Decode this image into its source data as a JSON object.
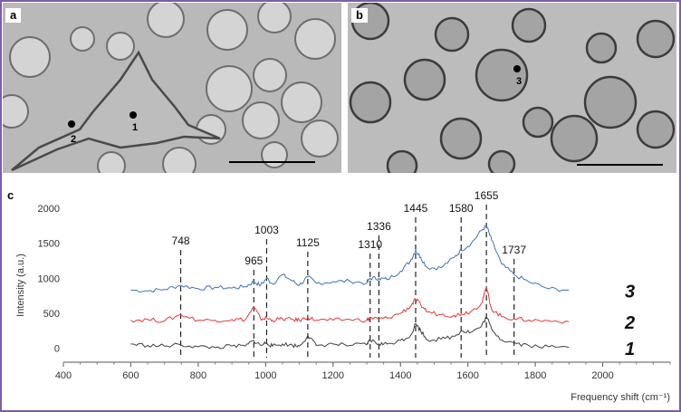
{
  "panels": {
    "a": {
      "letter": "a",
      "markers": [
        "1",
        "2"
      ]
    },
    "b": {
      "letter": "b",
      "markers": [
        "3"
      ]
    },
    "c": {
      "letter": "c"
    }
  },
  "colors": {
    "frame": "#7b5ea7",
    "series_3": "#3f72b8",
    "series_2": "#e23a3a",
    "series_1": "#404040"
  },
  "chart_data": {
    "type": "line",
    "title": "",
    "xlabel": "Frequency shift (cm⁻¹)",
    "ylabel": "Intensity (a.u.)",
    "xlim": [
      400,
      2200
    ],
    "ylim": [
      -200,
      2000
    ],
    "x_ticks": [
      "400",
      "600",
      "800",
      "1000",
      "1200",
      "1400",
      "1600",
      "1800",
      "2000"
    ],
    "y_ticks": [
      "0",
      "500",
      "1000",
      "1500",
      "2000"
    ],
    "grid": false,
    "peaks": [
      {
        "x": 748,
        "label": "748"
      },
      {
        "x": 965,
        "label": "965"
      },
      {
        "x": 1003,
        "label": "1003"
      },
      {
        "x": 1125,
        "label": "1125"
      },
      {
        "x": 1310,
        "label": "1310"
      },
      {
        "x": 1336,
        "label": "1336"
      },
      {
        "x": 1445,
        "label": "1445"
      },
      {
        "x": 1580,
        "label": "1580"
      },
      {
        "x": 1655,
        "label": "1655"
      },
      {
        "x": 1737,
        "label": "1737"
      }
    ],
    "x": [
      600,
      650,
      700,
      748,
      800,
      850,
      900,
      940,
      965,
      985,
      1003,
      1020,
      1050,
      1080,
      1100,
      1125,
      1150,
      1200,
      1250,
      1300,
      1310,
      1336,
      1360,
      1400,
      1430,
      1445,
      1460,
      1480,
      1520,
      1560,
      1580,
      1610,
      1640,
      1655,
      1670,
      1700,
      1737,
      1780,
      1840,
      1900
    ],
    "series": [
      {
        "name": "3",
        "values": [
          830,
          820,
          840,
          900,
          850,
          870,
          860,
          880,
          950,
          900,
          1000,
          920,
          1050,
          960,
          900,
          1020,
          930,
          950,
          960,
          930,
          1000,
          1000,
          980,
          1100,
          1250,
          1400,
          1300,
          1150,
          1150,
          1300,
          1400,
          1500,
          1680,
          1750,
          1550,
          1200,
          1050,
          950,
          850,
          830
        ]
      },
      {
        "name": "2",
        "values": [
          400,
          410,
          390,
          480,
          400,
          400,
          410,
          410,
          590,
          420,
          430,
          400,
          420,
          410,
          400,
          440,
          400,
          400,
          410,
          400,
          430,
          420,
          430,
          500,
          600,
          700,
          620,
          520,
          480,
          470,
          490,
          530,
          640,
          870,
          560,
          450,
          420,
          400,
          390,
          380
        ]
      },
      {
        "name": "1",
        "values": [
          60,
          40,
          30,
          50,
          20,
          10,
          30,
          30,
          110,
          40,
          80,
          30,
          60,
          40,
          30,
          180,
          40,
          60,
          40,
          50,
          120,
          60,
          60,
          110,
          180,
          350,
          250,
          120,
          130,
          170,
          250,
          230,
          310,
          450,
          280,
          120,
          80,
          40,
          20,
          10
        ]
      }
    ]
  }
}
